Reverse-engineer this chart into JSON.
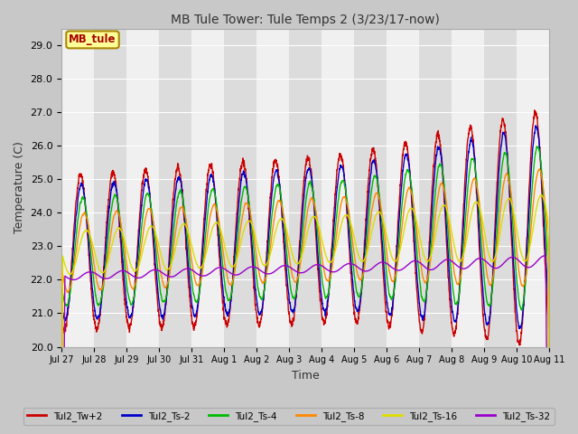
{
  "title": "MB Tule Tower: Tule Temps 2 (3/23/17-now)",
  "xlabel": "Time",
  "ylabel": "Temperature (C)",
  "ylim": [
    20.0,
    29.5
  ],
  "yticks": [
    20.0,
    21.0,
    22.0,
    23.0,
    24.0,
    25.0,
    26.0,
    27.0,
    28.0,
    29.0
  ],
  "series": {
    "Tul2_Tw+2": {
      "color": "#cc0000",
      "lw": 1.0
    },
    "Tul2_Ts-2": {
      "color": "#0000cc",
      "lw": 1.0
    },
    "Tul2_Ts-4": {
      "color": "#00bb00",
      "lw": 1.0
    },
    "Tul2_Ts-8": {
      "color": "#ff8800",
      "lw": 1.0
    },
    "Tul2_Ts-16": {
      "color": "#dddd00",
      "lw": 1.0
    },
    "Tul2_Ts-32": {
      "color": "#9900cc",
      "lw": 1.0
    }
  },
  "xtick_labels": [
    "Jul 27",
    "Jul 28",
    "Jul 29",
    "Jul 30",
    "Jul 31",
    "Aug 1",
    "Aug 2",
    "Aug 3",
    "Aug 4",
    "Aug 5",
    "Aug 6",
    "Aug 7",
    "Aug 8",
    "Aug 9",
    "Aug 10",
    "Aug 11"
  ],
  "annotation_text": "MB_tule",
  "annotation_color": "#aa0000",
  "annotation_bg": "#ffff99",
  "annotation_border": "#aa8800",
  "fig_bg": "#c8c8c8",
  "plot_bg": "#e8e8e8",
  "band_light": "#f0f0f0",
  "band_dark": "#dcdcdc"
}
